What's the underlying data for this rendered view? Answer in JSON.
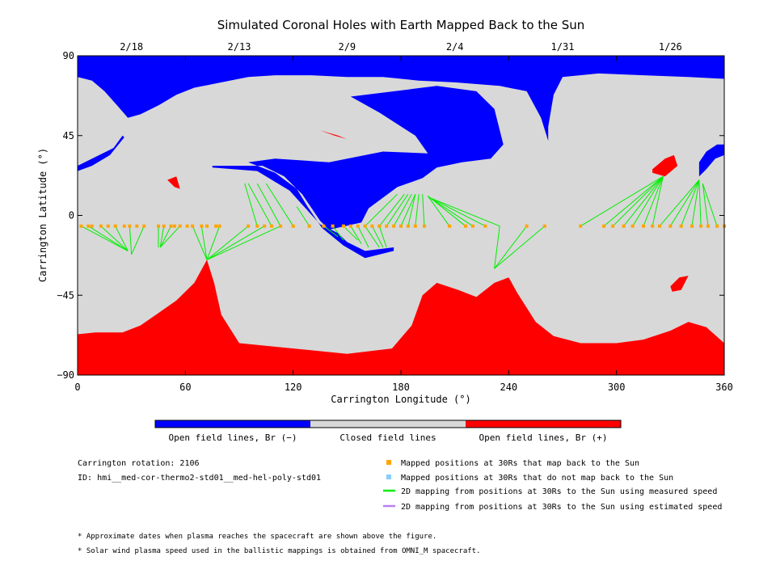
{
  "chart_data": {
    "type": "scatter",
    "title": "Simulated Coronal Holes with Earth Mapped Back to the Sun",
    "xlabel": "Carrington Longitude (°)",
    "ylabel": "Carrington Latitude (°)",
    "xlim": [
      0,
      360
    ],
    "ylim": [
      -90,
      90
    ],
    "x_ticks": [
      "0",
      "60",
      "120",
      "180",
      "240",
      "300",
      "360"
    ],
    "y_ticks": [
      "90",
      "45",
      "0",
      "−45",
      "−90"
    ],
    "top_axis": [
      {
        "label": "2/18",
        "lon": 30
      },
      {
        "label": "2/13",
        "lon": 90
      },
      {
        "label": "2/9",
        "lon": 150
      },
      {
        "label": "2/4",
        "lon": 210
      },
      {
        "label": "1/31",
        "lon": 270
      },
      {
        "label": "1/26",
        "lon": 330
      }
    ],
    "colorbar": [
      {
        "label": "Open field lines, Br (−)",
        "color": "#0000ff"
      },
      {
        "label": "Closed field lines",
        "color": "#d8d8d8"
      },
      {
        "label": "Open field lines, Br (+)",
        "color": "#ff0000"
      }
    ],
    "regions": [
      {
        "name": "north-polar-negative-hole",
        "polarity": "negative",
        "outline": [
          [
            0,
            90
          ],
          [
            360,
            90
          ],
          [
            360,
            77
          ],
          [
            340,
            78
          ],
          [
            315,
            79
          ],
          [
            290,
            80
          ],
          [
            270,
            78
          ],
          [
            265,
            68
          ],
          [
            262,
            50
          ],
          [
            262,
            42
          ],
          [
            258,
            55
          ],
          [
            250,
            70
          ],
          [
            235,
            73
          ],
          [
            210,
            75
          ],
          [
            190,
            76
          ],
          [
            170,
            78
          ],
          [
            150,
            78
          ],
          [
            130,
            79
          ],
          [
            110,
            79
          ],
          [
            95,
            78
          ],
          [
            80,
            75
          ],
          [
            65,
            72
          ],
          [
            55,
            68
          ],
          [
            45,
            62
          ],
          [
            35,
            57
          ],
          [
            28,
            55
          ],
          [
            22,
            62
          ],
          [
            15,
            70
          ],
          [
            8,
            76
          ],
          [
            0,
            78
          ]
        ]
      },
      {
        "name": "central-negative-hole",
        "polarity": "negative",
        "outline": [
          [
            152,
            67
          ],
          [
            200,
            73
          ],
          [
            222,
            70
          ],
          [
            232,
            60
          ],
          [
            237,
            40
          ],
          [
            230,
            32
          ],
          [
            214,
            30
          ],
          [
            200,
            27
          ],
          [
            192,
            21
          ],
          [
            178,
            16
          ],
          [
            162,
            4
          ],
          [
            158,
            -4
          ],
          [
            140,
            -8
          ],
          [
            135,
            -3
          ],
          [
            125,
            12
          ],
          [
            115,
            22
          ],
          [
            103,
            28
          ],
          [
            75,
            28
          ],
          [
            75,
            27
          ],
          [
            100,
            25
          ],
          [
            118,
            14
          ],
          [
            135,
            -5
          ],
          [
            145,
            -10
          ],
          [
            150,
            -15
          ],
          [
            160,
            -20
          ],
          [
            176,
            -18
          ],
          [
            176,
            -20
          ],
          [
            160,
            -24
          ],
          [
            148,
            -17
          ],
          [
            136,
            -7
          ],
          [
            128,
            5
          ],
          [
            122,
            15
          ],
          [
            110,
            24
          ],
          [
            95,
            30
          ],
          [
            110,
            32
          ],
          [
            140,
            30
          ],
          [
            170,
            36
          ],
          [
            195,
            35
          ],
          [
            188,
            45
          ],
          [
            168,
            58
          ],
          [
            152,
            67
          ]
        ]
      },
      {
        "name": "west-limb-negative-hole",
        "polarity": "negative",
        "outline": [
          [
            0,
            28
          ],
          [
            20,
            38
          ],
          [
            25,
            45
          ],
          [
            26,
            44
          ],
          [
            18,
            34
          ],
          [
            8,
            28
          ],
          [
            0,
            25
          ]
        ]
      },
      {
        "name": "east-limb-negative-hole",
        "polarity": "negative",
        "outline": [
          [
            346,
            30
          ],
          [
            350,
            36
          ],
          [
            356,
            40
          ],
          [
            360,
            40
          ],
          [
            360,
            34
          ],
          [
            355,
            32
          ],
          [
            350,
            26
          ],
          [
            346,
            22
          ]
        ]
      },
      {
        "name": "south-polar-positive-hole",
        "polarity": "positive",
        "outline": [
          [
            0,
            -90
          ],
          [
            360,
            -90
          ],
          [
            360,
            -72
          ],
          [
            350,
            -63
          ],
          [
            340,
            -60
          ],
          [
            330,
            -65
          ],
          [
            315,
            -70
          ],
          [
            300,
            -72
          ],
          [
            280,
            -72
          ],
          [
            265,
            -68
          ],
          [
            255,
            -60
          ],
          [
            245,
            -44
          ],
          [
            240,
            -35
          ],
          [
            232,
            -38
          ],
          [
            222,
            -46
          ],
          [
            212,
            -42
          ],
          [
            200,
            -38
          ],
          [
            192,
            -45
          ],
          [
            186,
            -62
          ],
          [
            175,
            -75
          ],
          [
            150,
            -78
          ],
          [
            120,
            -75
          ],
          [
            90,
            -72
          ],
          [
            80,
            -56
          ],
          [
            76,
            -38
          ],
          [
            72,
            -25
          ],
          [
            65,
            -38
          ],
          [
            55,
            -48
          ],
          [
            45,
            -55
          ],
          [
            35,
            -62
          ],
          [
            25,
            -66
          ],
          [
            10,
            -66
          ],
          [
            0,
            -67
          ]
        ]
      },
      {
        "name": "north-small-positive-hole",
        "polarity": "positive",
        "outline": [
          [
            135,
            48
          ],
          [
            145,
            45
          ],
          [
            150,
            43
          ],
          [
            143,
            45
          ]
        ]
      },
      {
        "name": "northeast-positive-hole",
        "polarity": "positive",
        "outline": [
          [
            320,
            26
          ],
          [
            327,
            32
          ],
          [
            332,
            34
          ],
          [
            334,
            28
          ],
          [
            327,
            22
          ],
          [
            320,
            24
          ]
        ]
      },
      {
        "name": "west-small-positive-hole",
        "polarity": "positive",
        "outline": [
          [
            50,
            20
          ],
          [
            55,
            22
          ],
          [
            57,
            15
          ],
          [
            54,
            16
          ]
        ]
      },
      {
        "name": "southeast-positive-hole",
        "polarity": "positive",
        "outline": [
          [
            330,
            -40
          ],
          [
            335,
            -35
          ],
          [
            340,
            -34
          ],
          [
            336,
            -42
          ],
          [
            331,
            -43
          ]
        ]
      }
    ],
    "mapped_positions_lat": -6,
    "mapped_positions_lon": [
      2,
      6,
      8,
      13,
      17,
      21,
      26,
      29,
      33,
      37,
      45,
      48,
      52,
      54,
      57,
      61,
      64,
      69,
      72,
      77,
      79,
      95,
      100,
      104,
      108,
      113,
      120,
      129,
      137,
      142,
      148,
      152,
      156,
      160,
      164,
      168,
      172,
      176,
      180,
      184,
      188,
      193,
      207,
      216,
      220,
      227,
      250,
      260,
      280,
      293,
      298,
      304,
      309,
      315,
      320,
      324,
      330,
      336,
      342,
      347,
      351,
      356,
      360
    ],
    "measured_speed_mappings": [
      {
        "from": [
          2,
          -6
        ],
        "to": [
          28,
          -20
        ]
      },
      {
        "from": [
          6,
          -6
        ],
        "to": [
          28,
          -20
        ]
      },
      {
        "from": [
          13,
          -6
        ],
        "to": [
          28,
          -20
        ]
      },
      {
        "from": [
          21,
          -6
        ],
        "to": [
          28,
          -20
        ]
      },
      {
        "from": [
          29,
          -6
        ],
        "to": [
          30,
          -22
        ]
      },
      {
        "from": [
          37,
          -6
        ],
        "to": [
          30,
          -22
        ]
      },
      {
        "from": [
          45,
          -6
        ],
        "to": [
          45,
          -18
        ]
      },
      {
        "from": [
          48,
          -6
        ],
        "to": [
          46,
          -18
        ]
      },
      {
        "from": [
          52,
          -6
        ],
        "to": [
          46,
          -18
        ]
      },
      {
        "from": [
          57,
          -6
        ],
        "to": [
          46,
          -18
        ]
      },
      {
        "from": [
          64,
          -6
        ],
        "to": [
          72,
          -25
        ]
      },
      {
        "from": [
          69,
          -6
        ],
        "to": [
          72,
          -25
        ]
      },
      {
        "from": [
          79,
          -6
        ],
        "to": [
          72,
          -25
        ]
      },
      {
        "from": [
          95,
          -6
        ],
        "to": [
          72,
          -25
        ]
      },
      {
        "from": [
          104,
          -6
        ],
        "to": [
          72,
          -25
        ]
      },
      {
        "from": [
          113,
          -6
        ],
        "to": [
          72,
          -25
        ]
      },
      {
        "from": [
          100,
          -6
        ],
        "to": [
          93,
          18
        ]
      },
      {
        "from": [
          108,
          -6
        ],
        "to": [
          95,
          18
        ]
      },
      {
        "from": [
          113,
          -6
        ],
        "to": [
          100,
          18
        ]
      },
      {
        "from": [
          120,
          -6
        ],
        "to": [
          105,
          18
        ]
      },
      {
        "from": [
          129,
          -6
        ],
        "to": [
          122,
          5
        ]
      },
      {
        "from": [
          137,
          -6
        ],
        "to": [
          145,
          -12
        ]
      },
      {
        "from": [
          142,
          -6
        ],
        "to": [
          148,
          -14
        ]
      },
      {
        "from": [
          148,
          -6
        ],
        "to": [
          156,
          -14
        ]
      },
      {
        "from": [
          152,
          -6
        ],
        "to": [
          158,
          -16
        ]
      },
      {
        "from": [
          156,
          -6
        ],
        "to": [
          162,
          -18
        ]
      },
      {
        "from": [
          160,
          -6
        ],
        "to": [
          168,
          -18
        ]
      },
      {
        "from": [
          164,
          -6
        ],
        "to": [
          170,
          -18
        ]
      },
      {
        "from": [
          168,
          -6
        ],
        "to": [
          172,
          -18
        ]
      },
      {
        "from": [
          160,
          -6
        ],
        "to": [
          178,
          12
        ]
      },
      {
        "from": [
          168,
          -6
        ],
        "to": [
          182,
          12
        ]
      },
      {
        "from": [
          172,
          -6
        ],
        "to": [
          184,
          12
        ]
      },
      {
        "from": [
          176,
          -6
        ],
        "to": [
          186,
          12
        ]
      },
      {
        "from": [
          180,
          -6
        ],
        "to": [
          188,
          12
        ]
      },
      {
        "from": [
          184,
          -6
        ],
        "to": [
          188,
          12
        ]
      },
      {
        "from": [
          188,
          -6
        ],
        "to": [
          190,
          12
        ]
      },
      {
        "from": [
          193,
          -6
        ],
        "to": [
          192,
          12
        ]
      },
      {
        "from": [
          207,
          -6
        ],
        "to": [
          195,
          11
        ]
      },
      {
        "from": [
          216,
          -6
        ],
        "to": [
          195,
          11
        ]
      },
      {
        "from": [
          220,
          -6
        ],
        "to": [
          196,
          10
        ]
      },
      {
        "from": [
          227,
          -6
        ],
        "to": [
          196,
          10
        ]
      },
      {
        "from": [
          235,
          -6
        ],
        "to": [
          196,
          10
        ]
      },
      {
        "from": [
          235,
          -6
        ],
        "to": [
          232,
          -30
        ]
      },
      {
        "from": [
          250,
          -6
        ],
        "to": [
          232,
          -30
        ]
      },
      {
        "from": [
          260,
          -6
        ],
        "to": [
          232,
          -30
        ]
      },
      {
        "from": [
          280,
          -6
        ],
        "to": [
          326,
          22
        ]
      },
      {
        "from": [
          293,
          -6
        ],
        "to": [
          326,
          22
        ]
      },
      {
        "from": [
          298,
          -6
        ],
        "to": [
          326,
          22
        ]
      },
      {
        "from": [
          304,
          -6
        ],
        "to": [
          326,
          22
        ]
      },
      {
        "from": [
          309,
          -6
        ],
        "to": [
          326,
          22
        ]
      },
      {
        "from": [
          315,
          -6
        ],
        "to": [
          326,
          22
        ]
      },
      {
        "from": [
          320,
          -6
        ],
        "to": [
          326,
          22
        ]
      },
      {
        "from": [
          324,
          -6
        ],
        "to": [
          346,
          20
        ]
      },
      {
        "from": [
          330,
          -6
        ],
        "to": [
          346,
          20
        ]
      },
      {
        "from": [
          336,
          -6
        ],
        "to": [
          346,
          20
        ]
      },
      {
        "from": [
          342,
          -6
        ],
        "to": [
          346,
          20
        ]
      },
      {
        "from": [
          347,
          -6
        ],
        "to": [
          346,
          20
        ]
      },
      {
        "from": [
          351,
          -6
        ],
        "to": [
          348,
          18
        ]
      },
      {
        "from": [
          356,
          -6
        ],
        "to": [
          348,
          18
        ]
      }
    ],
    "legend": [
      {
        "label": "Mapped positions at 30Rs that map back to the Sun",
        "color": "#ffa500",
        "marker": "square"
      },
      {
        "label": "Mapped positions at 30Rs that do not map back to the Sun",
        "color": "#87cefa",
        "marker": "square"
      },
      {
        "label": "2D mapping from positions at 30Rs to the Sun using measured speed",
        "color": "#00ee00",
        "marker": "line"
      },
      {
        "label": "2D mapping from positions at 30Rs to the Sun using estimated speed",
        "color": "#b880ee",
        "marker": "line"
      }
    ],
    "colors": {
      "closed": "#d8d8d8",
      "negative": "#0000ff",
      "positive": "#ff0000",
      "mapped": "#ffa500",
      "measured": "#00ee00"
    }
  },
  "info": {
    "rotation": "Carrington rotation: 2106",
    "id": "ID: hmi__med-cor-thermo2-std01__med-hel-poly-std01"
  },
  "notes": [
    "* Approximate dates when plasma reaches the spacecraft are shown above the figure.",
    "* Solar wind plasma speed used in the ballistic mappings is obtained from OMNI_M spacecraft."
  ]
}
